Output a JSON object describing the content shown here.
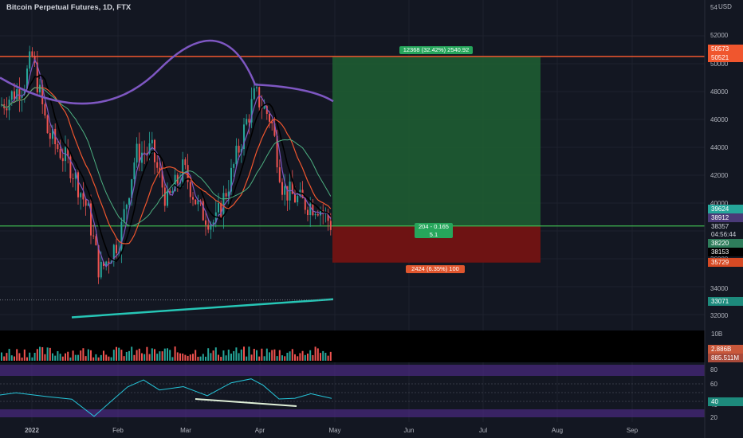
{
  "header": {
    "symbol_title": "Bitcoin Perpetual Futures, 1D, FTX",
    "currency": "USD"
  },
  "price_axis": {
    "ticks": [
      "54",
      "52000",
      "50000",
      "48000",
      "46000",
      "44000",
      "42000",
      "40000",
      "38000",
      "36000",
      "34000",
      "32000"
    ]
  },
  "price_labels": {
    "resistance_top": "50573",
    "resistance_bottom": "50521",
    "ma_a": "39624",
    "ma_b": "38912",
    "current": "38357",
    "countdown": "04:56:44",
    "ma_c": "38220",
    "ma_d": "38153",
    "stop": "35729",
    "ma_long": "33071"
  },
  "position": {
    "target_label": "12368 (32.42%) 2540.92",
    "entry_line1": "204 - 0.165",
    "entry_line2": "5.1",
    "stop_label": "2424 (6.35%) 100"
  },
  "volume": {
    "scale_tick": "10B",
    "value_a": "2.886B",
    "value_b": "885.511M"
  },
  "rsi": {
    "ticks": [
      "80",
      "60",
      "40",
      "20"
    ],
    "current": "40"
  },
  "time_axis": {
    "labels": [
      "2022",
      "Feb",
      "Mar",
      "Apr",
      "May",
      "Jun",
      "Jul",
      "Aug",
      "Sep"
    ]
  },
  "colors": {
    "background": "#131722",
    "up": "#26a69a",
    "down": "#ef5350",
    "profit_zone": "#1e5c32",
    "loss_zone": "#6e1313",
    "resistance_line": "#f0562e",
    "entry_line": "#3fb950",
    "ma_purple": "#7e57c2",
    "ma_long": "#26c6b6",
    "rsi_line": "#26c6da",
    "rsi_band": "#4a2a80"
  }
}
